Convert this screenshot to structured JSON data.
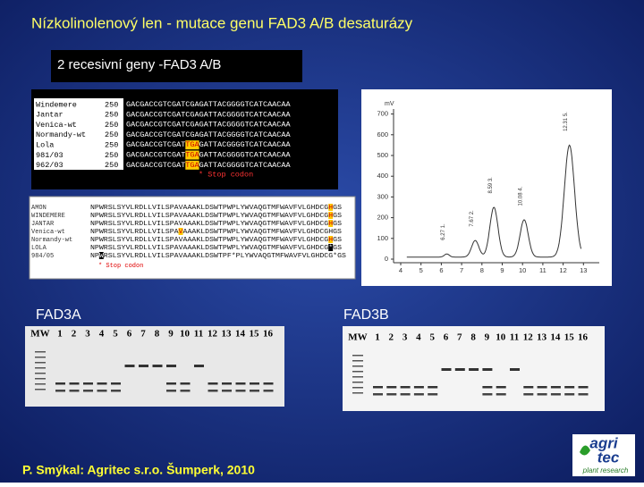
{
  "header": {
    "title": "Nízkolinolenový len  - mutace genu FAD3 A/B desaturázy",
    "subtitle": "2 recesivní geny -FAD3 A/B"
  },
  "dna_alignment": {
    "rows": [
      {
        "name": "Windemere",
        "pos": "250",
        "seq": [
          "GACGACCGTCGAT",
          "CGA",
          "GATTACGGGGTCATCAACAA"
        ]
      },
      {
        "name": "Jantar",
        "pos": "250",
        "seq": [
          "GACGACCGTCGAT",
          "CGA",
          "GATTACGGGGTCATCAACAA"
        ]
      },
      {
        "name": "Venica-wt",
        "pos": "250",
        "seq": [
          "GACGACCGTCGAT",
          "CGA",
          "GATTACGGGGTCATCAACAA"
        ]
      },
      {
        "name": "Normandy-wt",
        "pos": "250",
        "seq": [
          "GACGACCGTCGAT",
          "CGA",
          "GATTACGGGGTCATCAACAA"
        ]
      },
      {
        "name": "Lola",
        "pos": "250",
        "seq": [
          "GACGACCGTCGAT",
          "TGA",
          "GATTACGGGGTCATCAACAA"
        ]
      },
      {
        "name": "981/03",
        "pos": "250",
        "seq": [
          "GACGACCGTCGAT",
          "TGA",
          "GATTACGGGGTCATCAACAA"
        ]
      },
      {
        "name": "962/03",
        "pos": "250",
        "seq": [
          "GACGACCGTCGAT",
          "TGA",
          "GATTACGGGGTCATCAACAA"
        ]
      }
    ],
    "note": "* Stop codon"
  },
  "protein_alignment": {
    "rows": [
      {
        "name": "AMON",
        "seq": [
          "NPWRSLSYVLRDLLVILSPAVAAAKLDSWTPWPLYWVAQGTMFWAVFVLGHDCG",
          "H",
          "GS"
        ]
      },
      {
        "name": "WINDEMERE",
        "seq": [
          "NPWRSLSYVLRDLLVILSPAVAAAKLDSWTPWPLYWVAQGTMFWAVFVLGHDCG",
          "H",
          "GS"
        ]
      },
      {
        "name": "JANTAR",
        "seq": [
          "NPWRSLSYVLRDLLVILSPAVAAAKLDSWTPWPLYWVAQGTMFWAVFVLGHDCG",
          "H",
          "GS"
        ]
      },
      {
        "name": "Venica-wt",
        "seq": [
          "NPWRSLSYVLRDLLVILSPA",
          "V",
          "AAAKLDSWTPWPLYWVAQGTMFWAVFVLGHDCGHGS"
        ]
      },
      {
        "name": "Normandy-wt",
        "seq": [
          "NPWRSLSYVLRDLLVILSPAVAAAKLDSWTPWPLYWVAQGTMFWAVFVLGHDCG",
          "H",
          "GS"
        ]
      },
      {
        "name": "LOLA",
        "seq": [
          "NPWRSLSYVLRDLLVILSPAVAAAKLDSWTPWPLYWVAQGTMFWAVFVLGHDCG",
          "*",
          "GS"
        ]
      },
      {
        "name": "984/05",
        "seq": [
          "NP",
          "W",
          "RSLSYVLRDLLVILSPAVAAAKLDSWTPF*PLYWVAQGTMFWAVFVLGHDCG*GS"
        ]
      }
    ],
    "note": "* Stop codon"
  },
  "chromatogram": {
    "unit": "mV",
    "yticks": [
      0,
      100,
      200,
      300,
      400,
      500,
      600,
      700
    ],
    "xticks": [
      4,
      5,
      6,
      7,
      8,
      9,
      10,
      11,
      12,
      13
    ],
    "peaks": [
      "6.27 1.",
      "7.67 2.",
      "8.59 3.",
      "10.08 4.",
      "12.31 5."
    ]
  },
  "gels": [
    {
      "title": "FAD3A",
      "lanes": [
        "MW",
        "1",
        "2",
        "3",
        "4",
        "5",
        "6",
        "7",
        "8",
        "9",
        "10",
        "11",
        "12",
        "13",
        "14",
        "15",
        "16"
      ]
    },
    {
      "title": "FAD3B",
      "lanes": [
        "MW",
        "1",
        "2",
        "3",
        "4",
        "5",
        "6",
        "7",
        "8",
        "9",
        "10",
        "11",
        "12",
        "13",
        "14",
        "15",
        "16"
      ]
    }
  ],
  "footer": "P. Smýkal:  Agritec s.r.o. Šumperk, 2010",
  "logo": {
    "line1": "agri",
    "line2": "tec",
    "tagline": "plant research"
  }
}
